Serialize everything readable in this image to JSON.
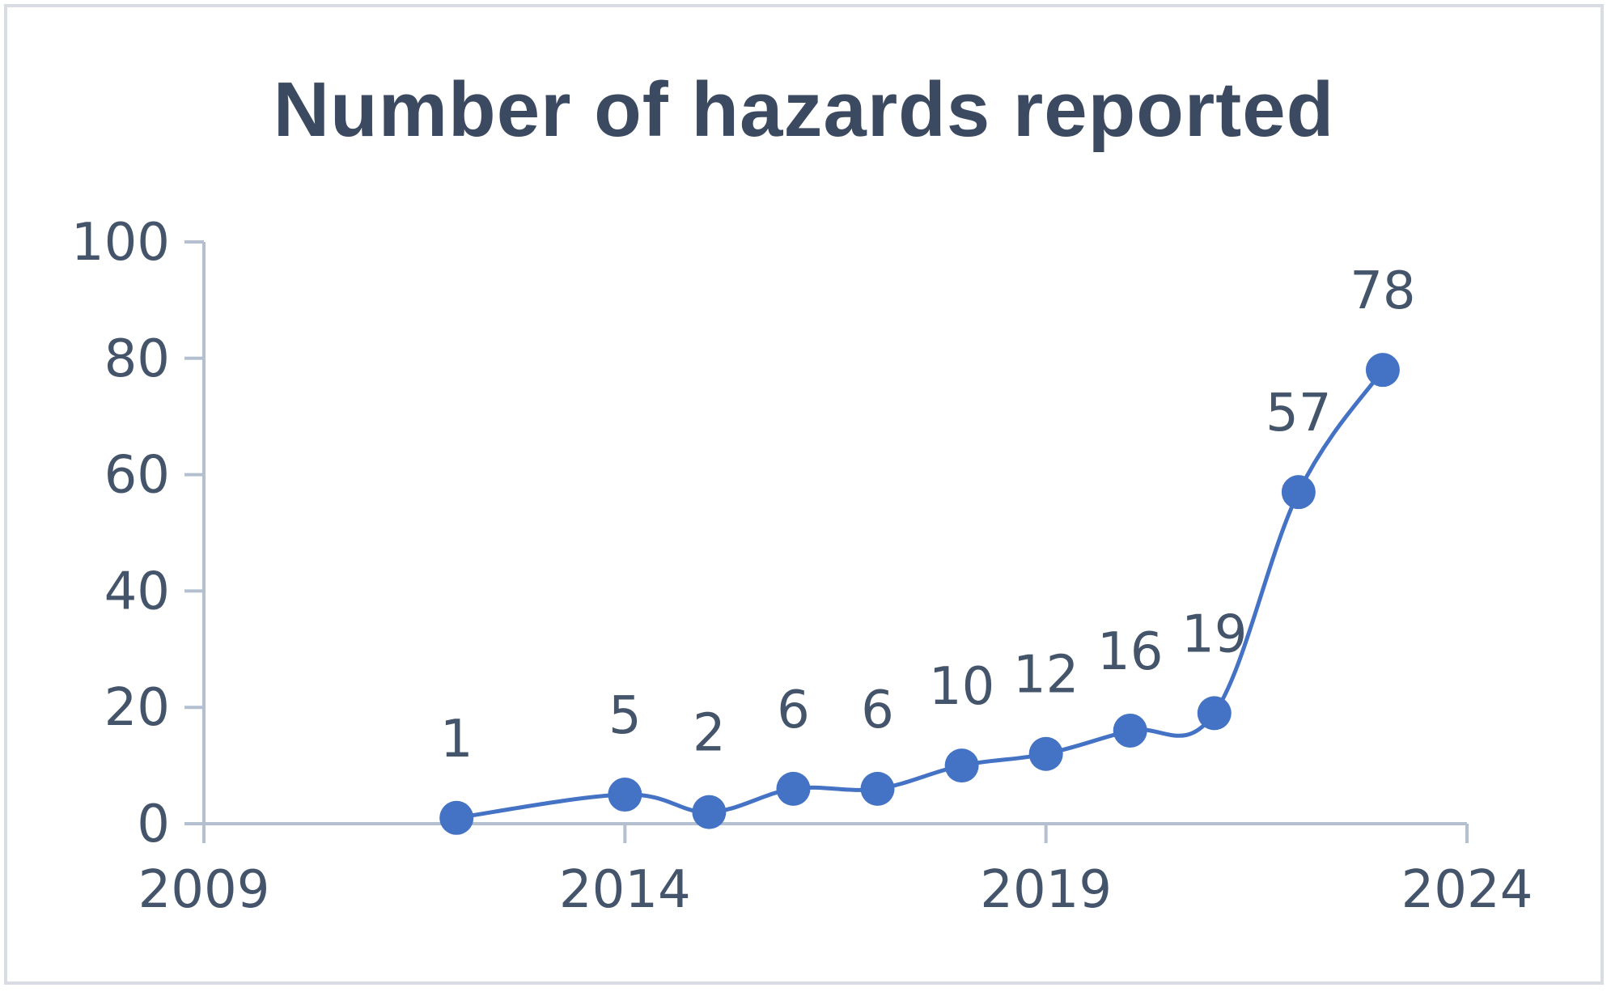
{
  "chart_data": {
    "type": "scatter",
    "title": "Number of hazards reported",
    "xlabel": "",
    "ylabel": "",
    "xlim": [
      2009,
      2024
    ],
    "ylim": [
      0,
      100
    ],
    "x_ticks": [
      2009,
      2014,
      2019,
      2024
    ],
    "y_ticks": [
      0,
      20,
      40,
      60,
      80,
      100
    ],
    "grid": false,
    "legend": "none",
    "series": [
      {
        "x": [
          2012,
          2014,
          2015,
          2016,
          2017,
          2018,
          2019,
          2020,
          2021,
          2022,
          2023
        ],
        "y": [
          1,
          5,
          2,
          6,
          6,
          10,
          12,
          16,
          19,
          57,
          78
        ],
        "labels": [
          "1",
          "5",
          "2",
          "6",
          "6",
          "10",
          "12",
          "16",
          "19",
          "57",
          "78"
        ]
      }
    ],
    "colors": {
      "series": "#4472c4",
      "axis": "#b4c0d0",
      "text": "#44546a",
      "title": "#3b4a60"
    }
  }
}
